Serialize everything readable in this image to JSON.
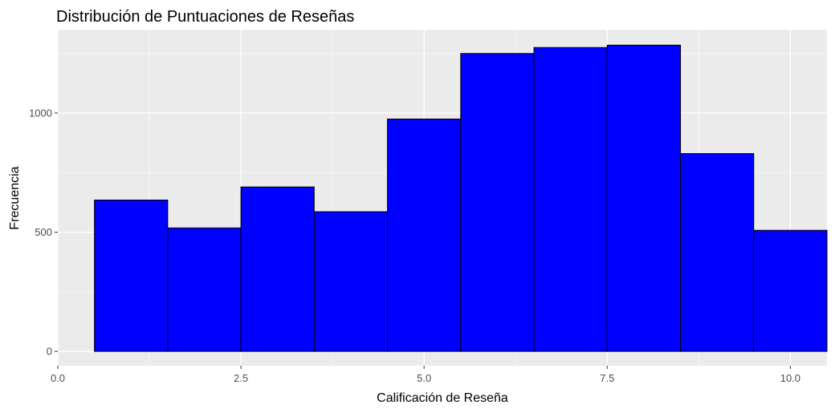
{
  "chart_data": {
    "type": "bar",
    "title": "Distribución de Puntuaciones de Reseñas",
    "xlabel": "Calificación de Reseña",
    "ylabel": "Frecuencia",
    "xlim": [
      0,
      10.5
    ],
    "ylim": [
      -60,
      1350
    ],
    "xticks": [
      0,
      2.5,
      5,
      7.5,
      10
    ],
    "xtick_labels": [
      "0.0",
      "2.5",
      "5.0",
      "7.5",
      "10.0"
    ],
    "yticks": [
      0,
      500,
      1000
    ],
    "ytick_labels": [
      "0",
      "500",
      "1000"
    ],
    "grid": true,
    "legend": "none",
    "bin_width": 1,
    "bins": [
      {
        "center": 1,
        "count": 635
      },
      {
        "center": 2,
        "count": 518
      },
      {
        "center": 3,
        "count": 690
      },
      {
        "center": 4,
        "count": 586
      },
      {
        "center": 5,
        "count": 975
      },
      {
        "center": 6,
        "count": 1250
      },
      {
        "center": 7,
        "count": 1275
      },
      {
        "center": 8,
        "count": 1285
      },
      {
        "center": 9,
        "count": 830
      },
      {
        "center": 10,
        "count": 508
      }
    ],
    "colors": {
      "bar_fill": "#0000ff",
      "bar_stroke": "#000000",
      "panel_bg": "#ebebeb",
      "grid_major": "#ffffff",
      "grid_minor": "#f5f5f5",
      "tick_text": "#4d4d4d"
    }
  }
}
